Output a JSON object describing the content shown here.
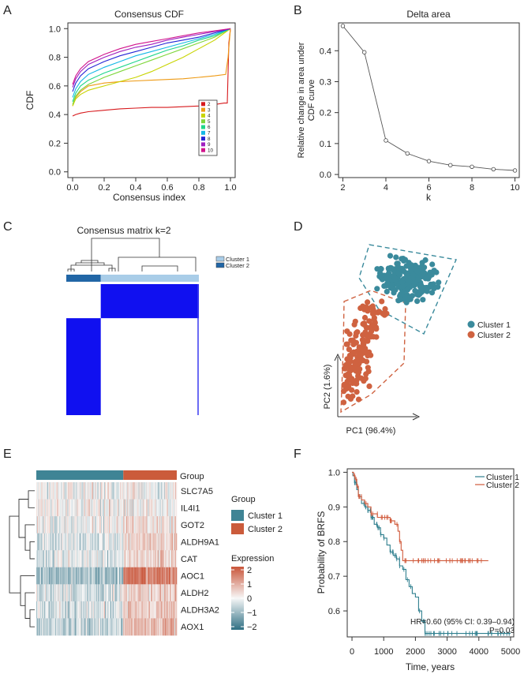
{
  "chart_data": [
    {
      "panel": "A",
      "type": "line",
      "title": "Consensus CDF",
      "xlabel": "Consensus index",
      "ylabel": "CDF",
      "xlim": [
        0,
        1
      ],
      "ylim": [
        0,
        1
      ],
      "x_ticks": [
        "0.0",
        "0.2",
        "0.4",
        "0.6",
        "0.8",
        "1.0"
      ],
      "y_ticks": [
        "0.0",
        "0.2",
        "0.4",
        "0.6",
        "0.8",
        "1.0"
      ],
      "legend_position": "inside-bottom-right",
      "series": [
        {
          "name": "2",
          "color": "#d7191c",
          "values": [
            [
              0.0,
              0.39
            ],
            [
              0.02,
              0.4
            ],
            [
              0.05,
              0.41
            ],
            [
              0.1,
              0.42
            ],
            [
              0.2,
              0.43
            ],
            [
              0.3,
              0.44
            ],
            [
              0.4,
              0.445
            ],
            [
              0.5,
              0.45
            ],
            [
              0.6,
              0.45
            ],
            [
              0.7,
              0.455
            ],
            [
              0.8,
              0.46
            ],
            [
              0.9,
              0.47
            ],
            [
              0.96,
              0.48
            ],
            [
              0.98,
              0.48
            ],
            [
              0.99,
              0.9
            ],
            [
              1.0,
              1.0
            ]
          ]
        },
        {
          "name": "3",
          "color": "#ee9a14",
          "values": [
            [
              0.0,
              0.46
            ],
            [
              0.02,
              0.52
            ],
            [
              0.05,
              0.56
            ],
            [
              0.1,
              0.6
            ],
            [
              0.2,
              0.62
            ],
            [
              0.3,
              0.63
            ],
            [
              0.4,
              0.635
            ],
            [
              0.5,
              0.64
            ],
            [
              0.6,
              0.645
            ],
            [
              0.7,
              0.65
            ],
            [
              0.8,
              0.66
            ],
            [
              0.9,
              0.67
            ],
            [
              0.97,
              0.68
            ],
            [
              0.985,
              0.8
            ],
            [
              1.0,
              1.0
            ]
          ]
        },
        {
          "name": "4",
          "color": "#c8d400",
          "values": [
            [
              0.0,
              0.46
            ],
            [
              0.02,
              0.51
            ],
            [
              0.05,
              0.54
            ],
            [
              0.1,
              0.57
            ],
            [
              0.2,
              0.6
            ],
            [
              0.3,
              0.63
            ],
            [
              0.4,
              0.66
            ],
            [
              0.5,
              0.7
            ],
            [
              0.6,
              0.75
            ],
            [
              0.7,
              0.8
            ],
            [
              0.8,
              0.86
            ],
            [
              0.9,
              0.92
            ],
            [
              0.95,
              0.96
            ],
            [
              1.0,
              1.0
            ]
          ]
        },
        {
          "name": "5",
          "color": "#7ed63a",
          "values": [
            [
              0.0,
              0.47
            ],
            [
              0.02,
              0.53
            ],
            [
              0.05,
              0.57
            ],
            [
              0.1,
              0.61
            ],
            [
              0.2,
              0.66
            ],
            [
              0.3,
              0.7
            ],
            [
              0.4,
              0.74
            ],
            [
              0.5,
              0.78
            ],
            [
              0.6,
              0.82
            ],
            [
              0.7,
              0.86
            ],
            [
              0.8,
              0.9
            ],
            [
              0.9,
              0.94
            ],
            [
              1.0,
              1.0
            ]
          ]
        },
        {
          "name": "6",
          "color": "#1fd68a",
          "values": [
            [
              0.0,
              0.49
            ],
            [
              0.02,
              0.55
            ],
            [
              0.05,
              0.6
            ],
            [
              0.1,
              0.64
            ],
            [
              0.2,
              0.69
            ],
            [
              0.3,
              0.73
            ],
            [
              0.4,
              0.77
            ],
            [
              0.5,
              0.81
            ],
            [
              0.6,
              0.85
            ],
            [
              0.7,
              0.88
            ],
            [
              0.8,
              0.92
            ],
            [
              0.9,
              0.95
            ],
            [
              1.0,
              1.0
            ]
          ]
        },
        {
          "name": "7",
          "color": "#14b7e6",
          "values": [
            [
              0.0,
              0.52
            ],
            [
              0.02,
              0.58
            ],
            [
              0.05,
              0.63
            ],
            [
              0.1,
              0.68
            ],
            [
              0.2,
              0.73
            ],
            [
              0.3,
              0.77
            ],
            [
              0.4,
              0.81
            ],
            [
              0.5,
              0.84
            ],
            [
              0.6,
              0.87
            ],
            [
              0.7,
              0.9
            ],
            [
              0.8,
              0.93
            ],
            [
              0.9,
              0.96
            ],
            [
              1.0,
              1.0
            ]
          ]
        },
        {
          "name": "8",
          "color": "#2424d6",
          "values": [
            [
              0.0,
              0.56
            ],
            [
              0.02,
              0.62
            ],
            [
              0.05,
              0.67
            ],
            [
              0.1,
              0.72
            ],
            [
              0.2,
              0.77
            ],
            [
              0.3,
              0.81
            ],
            [
              0.4,
              0.84
            ],
            [
              0.5,
              0.87
            ],
            [
              0.6,
              0.9
            ],
            [
              0.7,
              0.92
            ],
            [
              0.8,
              0.94
            ],
            [
              0.9,
              0.97
            ],
            [
              1.0,
              1.0
            ]
          ]
        },
        {
          "name": "9",
          "color": "#a020c0",
          "values": [
            [
              0.0,
              0.59
            ],
            [
              0.02,
              0.65
            ],
            [
              0.05,
              0.7
            ],
            [
              0.1,
              0.75
            ],
            [
              0.2,
              0.8
            ],
            [
              0.3,
              0.84
            ],
            [
              0.4,
              0.87
            ],
            [
              0.5,
              0.89
            ],
            [
              0.6,
              0.92
            ],
            [
              0.7,
              0.94
            ],
            [
              0.8,
              0.96
            ],
            [
              0.9,
              0.98
            ],
            [
              1.0,
              1.0
            ]
          ]
        },
        {
          "name": "10",
          "color": "#d1148c",
          "values": [
            [
              0.0,
              0.61
            ],
            [
              0.02,
              0.67
            ],
            [
              0.05,
              0.72
            ],
            [
              0.1,
              0.77
            ],
            [
              0.2,
              0.82
            ],
            [
              0.3,
              0.86
            ],
            [
              0.4,
              0.89
            ],
            [
              0.5,
              0.91
            ],
            [
              0.6,
              0.93
            ],
            [
              0.7,
              0.95
            ],
            [
              0.8,
              0.97
            ],
            [
              0.9,
              0.985
            ],
            [
              1.0,
              1.0
            ]
          ]
        }
      ]
    },
    {
      "panel": "B",
      "type": "line",
      "title": "Delta area",
      "xlabel": "k",
      "ylabel_lines": [
        "Relative change in area under",
        "CDF curve"
      ],
      "xlim": [
        1.8,
        10.2
      ],
      "ylim": [
        -0.01,
        0.49
      ],
      "x_ticks": [
        "2",
        "4",
        "6",
        "8",
        "10"
      ],
      "y_ticks": [
        "0.0",
        "0.1",
        "0.2",
        "0.3",
        "0.4"
      ],
      "x": [
        2,
        3,
        4,
        5,
        6,
        7,
        8,
        9,
        10
      ],
      "values": [
        0.48,
        0.395,
        0.11,
        0.068,
        0.043,
        0.03,
        0.025,
        0.017,
        0.013
      ]
    },
    {
      "panel": "C",
      "type": "heatmap",
      "title": "Consensus matrix k=2",
      "legend": [
        {
          "label": "Cluster 1",
          "color": "#a9cde8"
        },
        {
          "label": "Cluster 2",
          "color": "#2166a6"
        }
      ],
      "cluster_fractions": [
        0.74,
        0.26
      ],
      "colors": {
        "high": "#1010f0",
        "low": "#ffffff"
      }
    },
    {
      "panel": "D",
      "type": "scatter",
      "xlabel": "PC1 (96.4%)",
      "ylabel": "PC2 (1.6%)",
      "legend": [
        {
          "label": "Cluster 1",
          "color": "#3a8a9c"
        },
        {
          "label": "Cluster 2",
          "color": "#cf6240"
        }
      ],
      "n_points": [
        235,
        160
      ]
    },
    {
      "panel": "E",
      "type": "heatmap",
      "group_label": "Group",
      "group_legend_title": "Group",
      "group_legend": [
        {
          "label": "Cluster 1",
          "color": "#3f8495"
        },
        {
          "label": "Cluster 2",
          "color": "#cb5b3b"
        }
      ],
      "cluster1_fraction": 0.62,
      "genes": [
        "SLC7A5",
        "IL4I1",
        "GOT2",
        "ALDH9A1",
        "CAT",
        "AOC1",
        "ALDH2",
        "ALDH3A2",
        "AOX1"
      ],
      "gene_mean_cluster1": [
        0.0,
        0.0,
        -0.1,
        -0.3,
        -0.2,
        -0.8,
        -0.3,
        -0.35,
        -0.5
      ],
      "gene_mean_cluster2": [
        0.0,
        0.05,
        0.3,
        0.5,
        0.45,
        1.4,
        0.55,
        0.55,
        0.7
      ],
      "expression_title": "Expression",
      "expression_ticks": [
        "2",
        "1",
        "0",
        "−1",
        "−2"
      ],
      "expression_range": [
        -2,
        2
      ],
      "colors": {
        "high": "#c9553a",
        "mid": "#f7f7f7",
        "low": "#2f6f83"
      }
    },
    {
      "panel": "F",
      "type": "line",
      "xlabel": "Time, years",
      "ylabel": "Probability of BRFS",
      "xlim": [
        -150,
        5100
      ],
      "ylim": [
        0.525,
        1.01
      ],
      "x_ticks": [
        "0",
        "1000",
        "2000",
        "3000",
        "4000",
        "5000"
      ],
      "y_ticks": [
        "0.6",
        "0.7",
        "0.8",
        "0.9",
        "1.0"
      ],
      "annotation_hr": "HR=0.60 (95% CI: 0.39–0.94)",
      "annotation_p": "P=0.03",
      "series": [
        {
          "name": "Cluster 1",
          "color": "#2e7f8e",
          "values": [
            [
              0,
              1.0
            ],
            [
              30,
              0.99
            ],
            [
              80,
              0.97
            ],
            [
              150,
              0.95
            ],
            [
              200,
              0.93
            ],
            [
              300,
              0.91
            ],
            [
              400,
              0.9
            ],
            [
              500,
              0.89
            ],
            [
              600,
              0.87
            ],
            [
              700,
              0.85
            ],
            [
              800,
              0.84
            ],
            [
              900,
              0.82
            ],
            [
              1000,
              0.81
            ],
            [
              1100,
              0.79
            ],
            [
              1200,
              0.77
            ],
            [
              1300,
              0.76
            ],
            [
              1400,
              0.75
            ],
            [
              1500,
              0.73
            ],
            [
              1600,
              0.72
            ],
            [
              1700,
              0.69
            ],
            [
              1800,
              0.67
            ],
            [
              1900,
              0.65
            ],
            [
              2000,
              0.64
            ],
            [
              2100,
              0.6
            ],
            [
              2200,
              0.57
            ],
            [
              2300,
              0.535
            ],
            [
              5000,
              0.535
            ]
          ]
        },
        {
          "name": "Cluster 2",
          "color": "#d0593a",
          "values": [
            [
              0,
              1.0
            ],
            [
              50,
              0.99
            ],
            [
              100,
              0.98
            ],
            [
              150,
              0.96
            ],
            [
              200,
              0.93
            ],
            [
              300,
              0.92
            ],
            [
              400,
              0.91
            ],
            [
              500,
              0.9
            ],
            [
              600,
              0.88
            ],
            [
              800,
              0.87
            ],
            [
              1000,
              0.87
            ],
            [
              1200,
              0.86
            ],
            [
              1350,
              0.85
            ],
            [
              1450,
              0.83
            ],
            [
              1500,
              0.8
            ],
            [
              1550,
              0.775
            ],
            [
              1600,
              0.745
            ],
            [
              4300,
              0.745
            ]
          ]
        }
      ]
    }
  ],
  "panel_labels": {
    "a": "A",
    "b": "B",
    "c": "C",
    "d": "D",
    "e": "E",
    "f": "F"
  }
}
